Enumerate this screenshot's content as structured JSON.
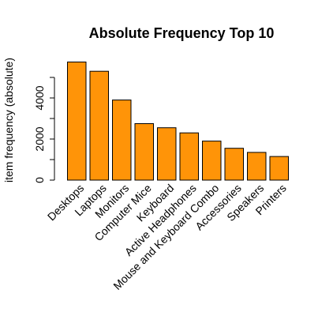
{
  "chart_data": {
    "type": "bar",
    "title": "Absolute Frequency Top 10",
    "xlabel": "",
    "ylabel": "item frequency (absolute)",
    "categories": [
      "Desktops",
      "Laptops",
      "Monitors",
      "Computer Mice",
      "Keyboard",
      "Active Headphones",
      "Mouse and Keyboard Combo",
      "Accessories",
      "Speakers",
      "Printers"
    ],
    "values": [
      5750,
      5300,
      3900,
      2750,
      2550,
      2300,
      1900,
      1550,
      1350,
      1150
    ],
    "ylim": [
      0,
      5000
    ],
    "y_ticks": [
      "0",
      "2000",
      "4000"
    ],
    "bar_color": "#FF9408",
    "grid": false
  }
}
